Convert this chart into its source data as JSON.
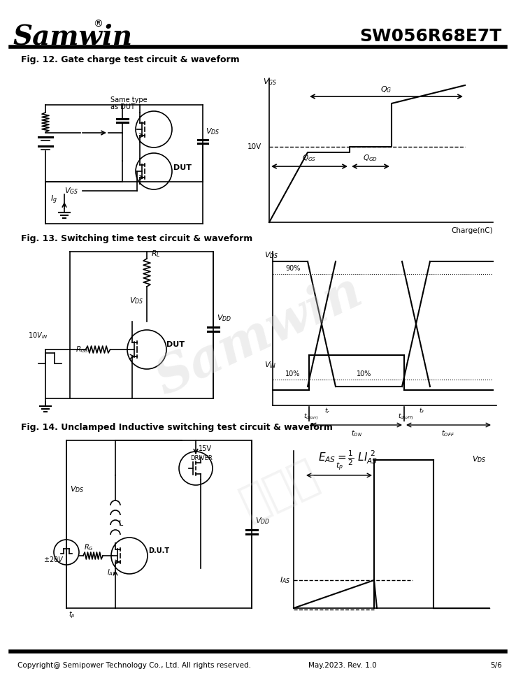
{
  "title_company": "Samwin",
  "title_part": "SW056R68E7T",
  "fig12_title": "Fig. 12. Gate charge test circuit & waveform",
  "fig13_title": "Fig. 13. Switching time test circuit & waveform",
  "fig14_title": "Fig. 14. Unclamped Inductive switching test circuit & waveform",
  "footer_left": "Copyright@ Semipower Technology Co., Ltd. All rights reserved.",
  "footer_mid": "May.2023. Rev. 1.0",
  "footer_right": "5/6",
  "bg_color": "#ffffff",
  "line_color": "#000000"
}
